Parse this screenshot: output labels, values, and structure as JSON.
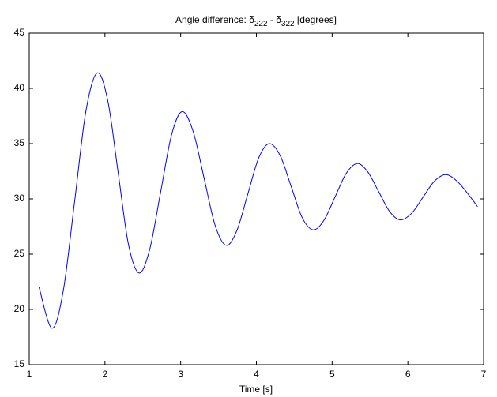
{
  "chart_data": {
    "type": "line",
    "title": [
      "Angle difference: δ",
      "222",
      " - δ",
      "322",
      " [degrees]"
    ],
    "xlabel": "Time [s]",
    "xlim": [
      1,
      7
    ],
    "xticks": [
      1,
      2,
      3,
      4,
      5,
      6,
      7
    ],
    "ylim": [
      15,
      45
    ],
    "yticks": [
      15,
      20,
      25,
      30,
      35,
      40,
      45
    ],
    "series": [
      {
        "color": "#0000ff",
        "x": [
          1.13,
          1.3,
          1.45,
          1.6,
          1.75,
          1.9,
          2.04,
          2.175,
          2.31,
          2.45,
          2.59,
          2.735,
          2.88,
          3.02,
          3.165,
          3.31,
          3.455,
          3.6,
          3.74,
          3.885,
          4.03,
          4.17,
          4.315,
          4.46,
          4.605,
          4.75,
          4.895,
          5.04,
          5.185,
          5.33,
          5.47,
          5.615,
          5.76,
          5.9,
          6.05,
          6.2,
          6.35,
          6.5,
          6.65,
          6.8,
          6.92
        ],
        "values": [
          22.0,
          18.3,
          21.7,
          29.8,
          38.0,
          41.4,
          38.8,
          32.35,
          25.9,
          23.3,
          25.4,
          30.6,
          35.8,
          37.9,
          36.1,
          31.85,
          27.6,
          25.8,
          27.1,
          30.4,
          33.7,
          35.0,
          33.9,
          31.1,
          28.3,
          27.2,
          28.1,
          30.2,
          32.3,
          33.2,
          32.45,
          30.65,
          28.85,
          28.1,
          28.7,
          30.15,
          31.6,
          32.2,
          31.6,
          30.4,
          29.3
        ]
      }
    ]
  }
}
